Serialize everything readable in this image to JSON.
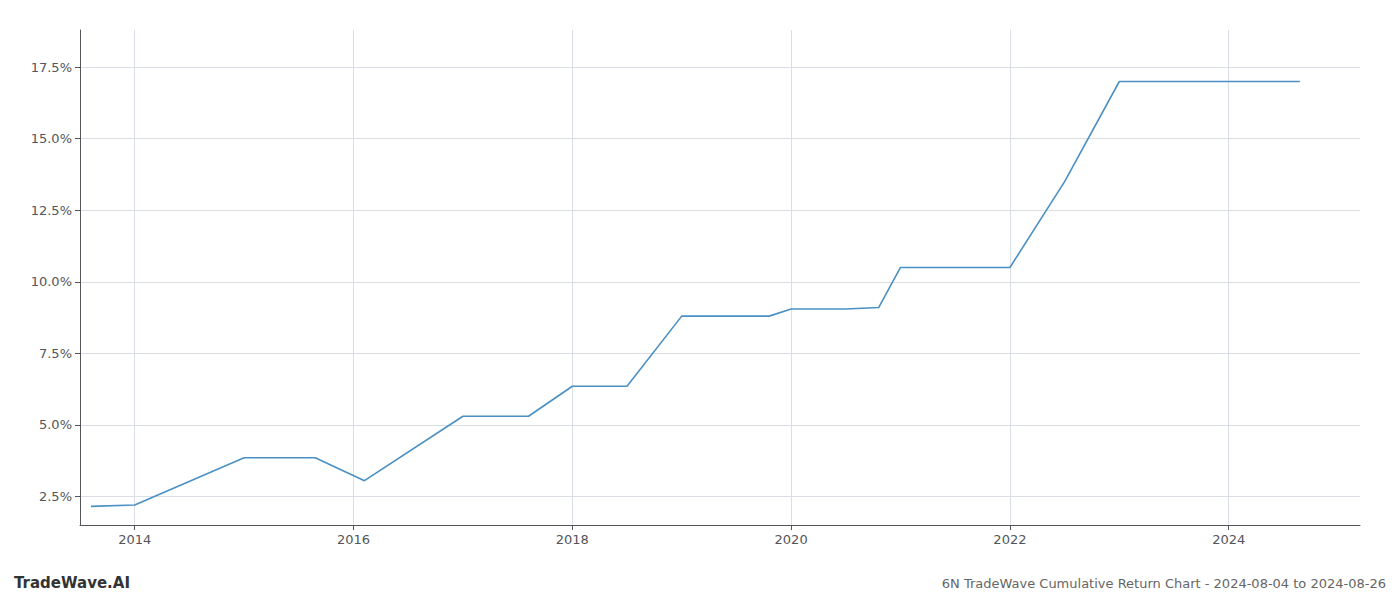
{
  "chart_data": {
    "type": "line",
    "title": "6N TradeWave Cumulative Return Chart - 2024-08-04 to 2024-08-26",
    "annotations": [
      "TradeWave.AI"
    ],
    "x": [
      2013.6,
      2014.0,
      2015.0,
      2015.65,
      2016.1,
      2017.0,
      2017.6,
      2018.0,
      2018.5,
      2019.0,
      2019.4,
      2019.8,
      2020.0,
      2020.5,
      2020.8,
      2021.0,
      2021.5,
      2022.0,
      2022.5,
      2023.0,
      2023.3,
      2024.0,
      2024.65
    ],
    "values": [
      2.15,
      2.2,
      3.85,
      3.85,
      3.05,
      5.3,
      5.3,
      6.35,
      6.35,
      8.8,
      8.8,
      8.8,
      9.05,
      9.05,
      9.1,
      10.5,
      10.5,
      10.5,
      13.5,
      17.0,
      17.0,
      17.0,
      17.0
    ],
    "color": "#4a90c4",
    "xlim": [
      2013.5,
      2025.2
    ],
    "xticks": [
      2014,
      2016,
      2018,
      2020,
      2022,
      2024
    ],
    "ylim": [
      1.5,
      18.8
    ],
    "yticks": [
      {
        "value": 2.5,
        "label": "2.5%"
      },
      {
        "value": 5.0,
        "label": "5.0%"
      },
      {
        "value": 7.5,
        "label": "7.5%"
      },
      {
        "value": 10.0,
        "label": "10.0%"
      },
      {
        "value": 12.5,
        "label": "12.5%"
      },
      {
        "value": 15.0,
        "label": "15.0%"
      },
      {
        "value": 17.5,
        "label": "17.5%"
      }
    ],
    "grid": true
  }
}
